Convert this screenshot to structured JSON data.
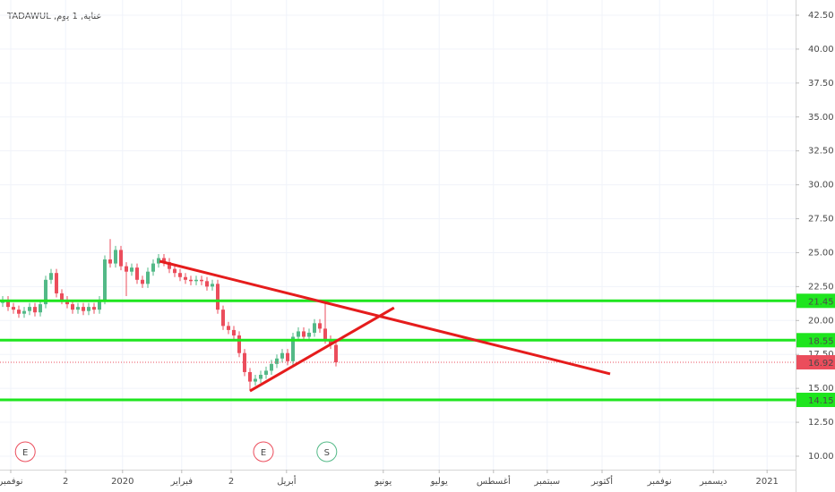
{
  "chart_data": {
    "type": "candlestick",
    "title": "عناية, 1 يوم, TADAWUL",
    "open": [
      21.3,
      21.5,
      21.0,
      20.8,
      20.5,
      20.7,
      21.0,
      20.6,
      21.2,
      23.0,
      23.5,
      22.0,
      21.5,
      21.2,
      20.8,
      21.0,
      20.7,
      21.0,
      20.8,
      21.5,
      24.5,
      24.2,
      25.2,
      24.0,
      23.6,
      23.9,
      23.0,
      22.7,
      23.6,
      24.2,
      24.6,
      24.3,
      23.8,
      23.5,
      23.2,
      23.0,
      22.9,
      23.0,
      22.9,
      22.5,
      22.7,
      20.8,
      19.6,
      19.3,
      18.9,
      17.6,
      16.2,
      15.5,
      15.7,
      16.0,
      16.3,
      16.8,
      17.2,
      17.6,
      17.0,
      18.8,
      19.2,
      18.8,
      19.1,
      19.8,
      19.4,
      18.6,
      18.2
    ],
    "high": [
      21.8,
      21.8,
      21.3,
      21.1,
      21.0,
      21.3,
      21.3,
      21.5,
      23.3,
      23.8,
      23.8,
      22.3,
      21.8,
      21.5,
      21.3,
      21.3,
      21.3,
      21.3,
      21.8,
      24.8,
      26.0,
      25.5,
      25.5,
      24.3,
      24.2,
      24.2,
      23.3,
      23.9,
      24.5,
      24.9,
      24.9,
      24.6,
      24.1,
      23.8,
      23.5,
      23.3,
      23.3,
      23.3,
      23.2,
      23.0,
      23.0,
      21.1,
      19.9,
      19.6,
      19.2,
      17.9,
      16.5,
      16.0,
      16.3,
      16.6,
      17.1,
      17.5,
      17.9,
      17.9,
      19.1,
      19.5,
      19.5,
      19.4,
      20.1,
      20.1,
      21.3,
      18.9,
      18.5
    ],
    "low": [
      21.0,
      20.7,
      20.5,
      20.2,
      20.2,
      20.4,
      20.3,
      20.3,
      20.9,
      22.7,
      21.7,
      21.2,
      20.9,
      20.5,
      20.5,
      20.4,
      20.4,
      20.5,
      20.5,
      21.2,
      23.9,
      23.9,
      23.7,
      21.8,
      23.3,
      22.7,
      22.4,
      22.4,
      23.3,
      23.9,
      24.0,
      23.5,
      23.2,
      22.9,
      22.7,
      22.6,
      22.6,
      22.6,
      22.2,
      22.2,
      20.5,
      19.3,
      19.0,
      18.6,
      17.3,
      15.9,
      14.8,
      15.2,
      15.4,
      15.7,
      16.0,
      16.5,
      16.9,
      16.7,
      16.7,
      18.5,
      18.5,
      18.5,
      18.8,
      19.1,
      18.3,
      17.9,
      16.62
    ],
    "close": [
      21.5,
      21.0,
      20.8,
      20.5,
      20.7,
      21.0,
      20.6,
      21.2,
      23.0,
      23.5,
      22.0,
      21.5,
      21.2,
      20.8,
      21.0,
      20.7,
      21.0,
      20.8,
      21.5,
      24.5,
      24.2,
      25.2,
      24.0,
      23.6,
      23.9,
      23.0,
      22.7,
      23.6,
      24.2,
      24.6,
      24.3,
      23.8,
      23.5,
      23.2,
      23.0,
      22.9,
      23.0,
      22.9,
      22.5,
      22.7,
      20.8,
      19.6,
      19.3,
      18.9,
      17.6,
      16.2,
      15.5,
      15.7,
      16.0,
      16.3,
      16.8,
      17.2,
      17.6,
      17.0,
      18.8,
      19.2,
      18.8,
      19.1,
      19.8,
      19.4,
      18.6,
      18.2,
      16.92
    ],
    "up_color": "#53b987",
    "down_color": "#eb4d5c",
    "xlim": [
      0,
      148
    ],
    "ylim": [
      9.01,
      43.62
    ],
    "xticks": [
      {
        "value": 2,
        "label": "نوفمبر"
      },
      {
        "value": 12.2,
        "label": "2"
      },
      {
        "value": 22.8,
        "label": "2020"
      },
      {
        "value": 33.8,
        "label": "فبراير"
      },
      {
        "value": 43,
        "label": "2"
      },
      {
        "value": 53.3,
        "label": "أبريل"
      },
      {
        "value": 71.3,
        "label": "يونيو"
      },
      {
        "value": 81.7,
        "label": "يوليو"
      },
      {
        "value": 91.8,
        "label": "أغسطس"
      },
      {
        "value": 101.8,
        "label": "سبتمبر"
      },
      {
        "value": 112,
        "label": "أكتوبر"
      },
      {
        "value": 122.7,
        "label": "نوفمبر"
      },
      {
        "value": 132.7,
        "label": "ديسمبر"
      },
      {
        "value": 142.7,
        "label": "2021"
      }
    ],
    "yticks": [
      {
        "value": 10,
        "label": "10.00"
      },
      {
        "value": 12.5,
        "label": "12.50"
      },
      {
        "value": 15,
        "label": "15.00"
      },
      {
        "value": 17.5,
        "label": "17.50"
      },
      {
        "value": 20,
        "label": "20.00"
      },
      {
        "value": 22.5,
        "label": "22.50"
      },
      {
        "value": 25,
        "label": "25.00"
      },
      {
        "value": 27.5,
        "label": "27.50"
      },
      {
        "value": 30,
        "label": "30.00"
      },
      {
        "value": 32.5,
        "label": "32.50"
      },
      {
        "value": 35,
        "label": "35.00"
      },
      {
        "value": 37.5,
        "label": "37.50"
      },
      {
        "value": 40,
        "label": "40.00"
      },
      {
        "value": 42.5,
        "label": "42.50"
      }
    ],
    "grid": true,
    "levels": [
      {
        "value": 21.45,
        "color": "#1ee51e"
      },
      {
        "value": 18.55,
        "color": "#1ee51e"
      },
      {
        "value": 14.15,
        "color": "#1ee51e"
      }
    ],
    "last_price": {
      "value": 16.92,
      "color": "#eb4d5c"
    },
    "trend_lines": [
      {
        "x": [
          29.7,
          113.5
        ],
        "values": [
          24.37,
          16.07
        ],
        "color": "#e51c1c"
      },
      {
        "x": [
          46.5,
          73.3
        ],
        "values": [
          14.81,
          20.94
        ],
        "color": "#e51c1c"
      }
    ],
    "events": [
      {
        "x": 4.7,
        "label": "E",
        "color": "#eb4d5c"
      },
      {
        "x": 49,
        "label": "E",
        "color": "#eb4d5c"
      },
      {
        "x": 60.8,
        "label": "S",
        "color": "#53b987"
      }
    ]
  }
}
